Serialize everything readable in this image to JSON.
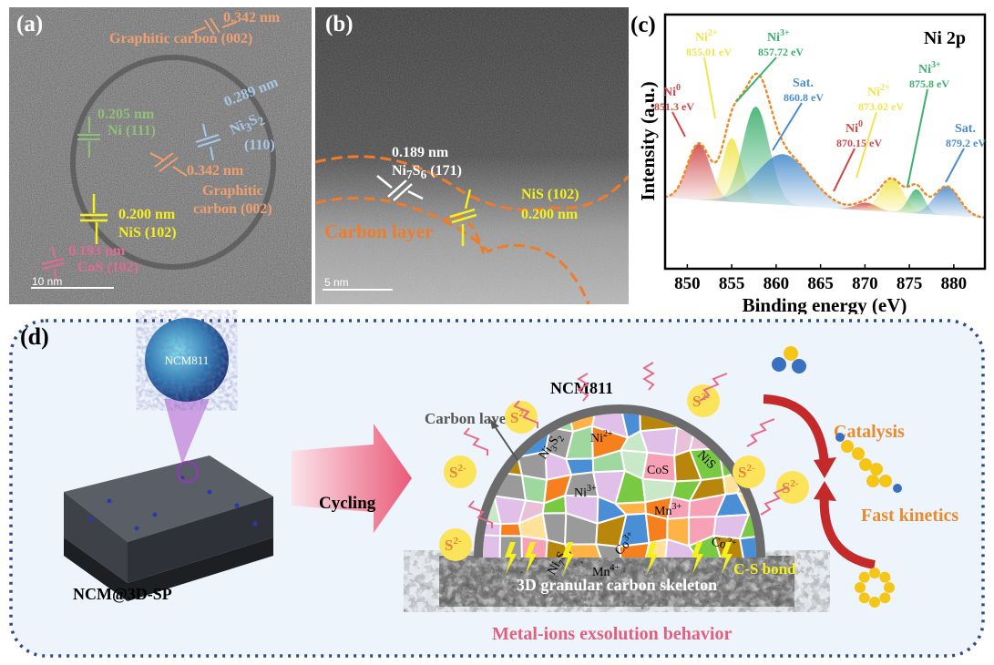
{
  "panel_a": {
    "label": "(a)",
    "annotations": [
      {
        "spacing": "0.342 nm",
        "plane": "Graphitic carbon (002)",
        "color": "#f0a070"
      },
      {
        "spacing": "0.205 nm",
        "plane": "Ni (111)",
        "color": "#8fc07a"
      },
      {
        "spacing": "0.289 nm",
        "plane_main": "Ni",
        "sub1": "3",
        "mid": "S",
        "sub2": "2",
        "plane_index": "(110)",
        "color": "#a8c8e8"
      },
      {
        "spacing": "0.342 nm",
        "plane_line1": "Graphitic",
        "plane_line2": "carbon (002)",
        "color": "#f0a070"
      },
      {
        "spacing": "0.200 nm",
        "plane": "NiS (102)",
        "color": "#f5f01e"
      },
      {
        "spacing": "0.193 nm",
        "plane": "CoS (102)",
        "color": "#e06b93"
      }
    ],
    "scale_bar": "10 nm"
  },
  "panel_b": {
    "label": "(b)",
    "ni7s6_spacing": "0.189 nm",
    "ni7s6_plane": {
      "a": "Ni",
      "s1": "7",
      "b": "S",
      "s2": "6",
      "c": " (171)"
    },
    "nis_plane": "NiS (102)",
    "nis_spacing": "0.200 nm",
    "carbon_layer": "Carbon layer",
    "scale_bar": "5 nm"
  },
  "panel_c": {
    "label": "(c)"
  },
  "chart_data": {
    "type": "area",
    "title": "Ni 2p",
    "xlabel": "Binding energy (eV)",
    "ylabel": "Intensity (a.u.)",
    "xlim": [
      847.5,
      883.5
    ],
    "xticks": [
      850,
      855,
      860,
      865,
      870,
      875,
      880
    ],
    "y_ticks_shown": false,
    "ylim": [
      0,
      100
    ],
    "background": {
      "x": [
        847.5,
        883.5
      ],
      "y": [
        28,
        20
      ]
    },
    "series": [
      {
        "name": "Ni0",
        "label_main": "Ni",
        "sup": "0",
        "energy": "851.3 eV",
        "center": 851.3,
        "height": 22,
        "sigma": 1.3,
        "color": "#d04848"
      },
      {
        "name": "Ni2+",
        "label_main": "Ni",
        "sup": "2+",
        "energy": "855.01 eV",
        "center": 855.01,
        "height": 25,
        "sigma": 1.1,
        "color": "#f2e44a"
      },
      {
        "name": "Ni3+",
        "label_main": "Ni",
        "sup": "3+",
        "energy": "857.72 eV",
        "center": 857.72,
        "height": 38,
        "sigma": 1.5,
        "color": "#3bb06e"
      },
      {
        "name": "Sat.",
        "label_main": "Sat.",
        "sup": "",
        "energy": "860.8 eV",
        "center": 860.8,
        "height": 20,
        "sigma": 3.0,
        "color": "#4a8ccc"
      },
      {
        "name": "Ni0",
        "label_main": "Ni",
        "sup": "0",
        "energy": "870.15 eV",
        "center": 870.15,
        "height": 3,
        "sigma": 1.2,
        "color": "#d04848"
      },
      {
        "name": "Ni2+",
        "label_main": "Ni",
        "sup": "2+",
        "energy": "873.02 eV",
        "center": 873.02,
        "height": 13,
        "sigma": 1.3,
        "color": "#f2e44a"
      },
      {
        "name": "Ni3+",
        "label_main": "Ni",
        "sup": "3+",
        "energy": "875.8 eV",
        "center": 875.8,
        "height": 9.5,
        "sigma": 0.9,
        "color": "#3bb06e"
      },
      {
        "name": "Sat.",
        "label_main": "Sat.",
        "sup": "",
        "energy": "879.2 eV",
        "center": 879.2,
        "height": 11.5,
        "sigma": 1.4,
        "color": "#4a8ccc"
      }
    ],
    "envelope_color": "#f08a24",
    "grid": false,
    "legend": "none"
  },
  "panel_d": {
    "label": "(d)",
    "sphere_label": "NCM811",
    "substrate_label": "NCM@3D-SP",
    "arrow_label": "Cycling",
    "particle_label": "NCM811",
    "carbon_layer": "Carbon layer",
    "sulfide_ion": {
      "main": "S",
      "sup": "2-"
    },
    "grains": [
      {
        "main": "Ni",
        "s1": "3",
        "b": "S",
        "s2": "2"
      },
      {
        "main": "Ni",
        "sup": "2+"
      },
      {
        "main": "CoS"
      },
      {
        "main": "NiS"
      },
      {
        "main": "Ni",
        "sup": "3+"
      },
      {
        "main": "Mn",
        "sup": "3+"
      },
      {
        "main": "Co",
        "sup": "2+"
      },
      {
        "main": "Co",
        "sup": "3+"
      },
      {
        "main": "Ni",
        "s1": "7",
        "b": "S",
        "s2": "6"
      },
      {
        "main": "Mn",
        "sup": "4+"
      }
    ],
    "bond_label": "C-S bond",
    "skeleton_label": "3D granular carbon skeleton",
    "caption": "Metal-ions exsolution behavior",
    "catalysis": "Catalysis",
    "kinetics": "Fast kinetics",
    "colors": {
      "border": "#2c4a8c",
      "background": "#eef4fb",
      "caption": "#e0607e",
      "accent": "#ea8a2e"
    }
  }
}
